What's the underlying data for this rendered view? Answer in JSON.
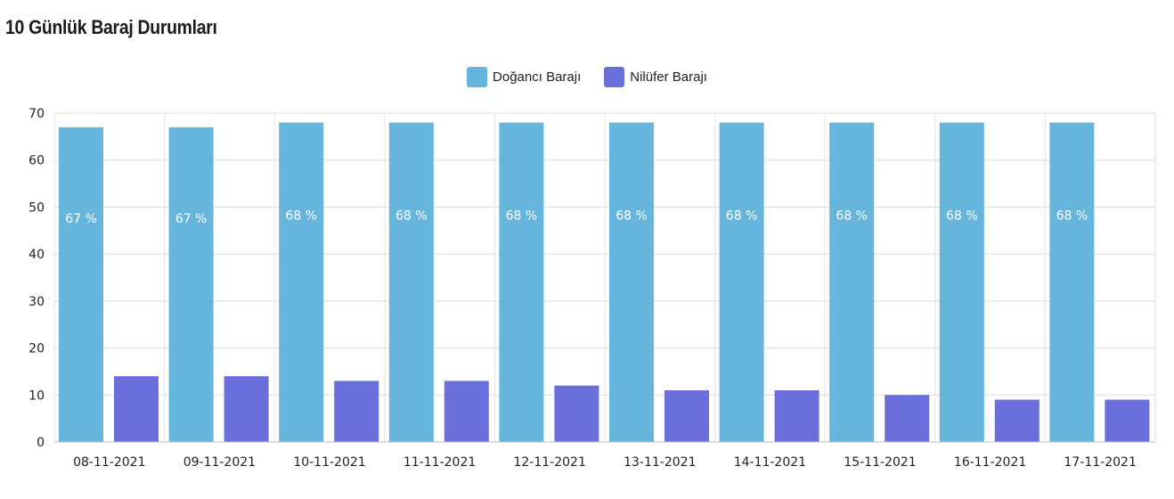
{
  "title": "10 Günlük Baraj Durumları",
  "legend": [
    {
      "label": "Doğancı Barajı",
      "color": "#66b5dc"
    },
    {
      "label": "Nilüfer Barajı",
      "color": "#6b6fdc"
    }
  ],
  "chart_data": {
    "type": "bar",
    "title": "10 Günlük Baraj Durumları",
    "xlabel": "",
    "ylabel": "",
    "ylim": [
      0,
      70
    ],
    "yticks": [
      0,
      10,
      20,
      30,
      40,
      50,
      60,
      70
    ],
    "grid": true,
    "legend_position": "top-center",
    "categories": [
      "08-11-2021",
      "09-11-2021",
      "10-11-2021",
      "11-11-2021",
      "12-11-2021",
      "13-11-2021",
      "14-11-2021",
      "15-11-2021",
      "16-11-2021",
      "17-11-2021"
    ],
    "series": [
      {
        "name": "Doğancı Barajı",
        "color": "#66b5dc",
        "values": [
          67,
          67,
          68,
          68,
          68,
          68,
          68,
          68,
          68,
          68
        ],
        "data_labels": [
          "67 %",
          "67 %",
          "68 %",
          "68 %",
          "68 %",
          "68 %",
          "68 %",
          "68 %",
          "68 %",
          "68 %"
        ]
      },
      {
        "name": "Nilüfer Barajı",
        "color": "#6b6fdc",
        "values": [
          14,
          14,
          13,
          13,
          12,
          11,
          11,
          10,
          9,
          9
        ]
      }
    ]
  }
}
